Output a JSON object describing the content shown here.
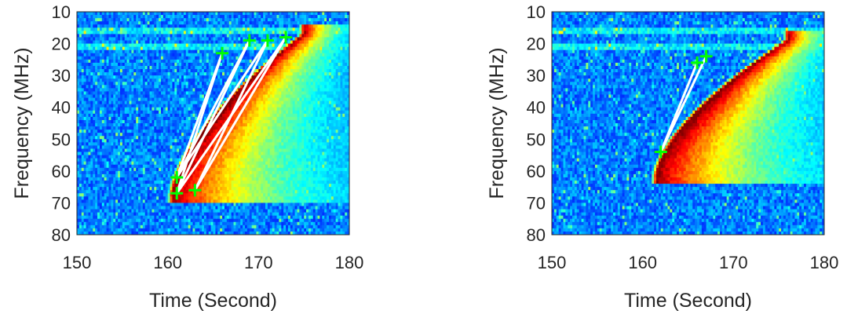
{
  "chart_data": [
    {
      "type": "heatmap",
      "overlay": "scatter-with-connecting-lines",
      "title": "",
      "xlabel": "Time (Second)",
      "ylabel": "Frequency (MHz)",
      "xlim": [
        150,
        180
      ],
      "ylim": [
        10,
        80
      ],
      "y_reversed": true,
      "xticks": [
        "150",
        "160",
        "170",
        "180"
      ],
      "yticks": [
        "10",
        "20",
        "30",
        "40",
        "50",
        "60",
        "70",
        "80"
      ],
      "colormap": "jet",
      "burst": {
        "start_time": 160.5,
        "start_freq": 68,
        "end_time": 175,
        "end_freq": 17
      },
      "markers": [
        {
          "x": 161,
          "y": 62
        },
        {
          "x": 161,
          "y": 67
        },
        {
          "x": 163,
          "y": 66
        },
        {
          "x": 166,
          "y": 23
        },
        {
          "x": 169,
          "y": 19
        },
        {
          "x": 171,
          "y": 19
        },
        {
          "x": 173,
          "y": 18
        }
      ],
      "lines": [
        {
          "from": [
            161,
            62
          ],
          "to": [
            166,
            23
          ]
        },
        {
          "from": [
            161,
            67
          ],
          "to": [
            166,
            23
          ]
        },
        {
          "from": [
            161,
            62
          ],
          "to": [
            169,
            19
          ]
        },
        {
          "from": [
            161,
            67
          ],
          "to": [
            169,
            19
          ]
        },
        {
          "from": [
            161,
            62
          ],
          "to": [
            171,
            19
          ]
        },
        {
          "from": [
            163,
            66
          ],
          "to": [
            171,
            19
          ]
        },
        {
          "from": [
            161,
            67
          ],
          "to": [
            173,
            18
          ]
        },
        {
          "from": [
            163,
            66
          ],
          "to": [
            173,
            18
          ]
        }
      ],
      "marker_color": "#00ff00",
      "line_color": "#ffffff"
    },
    {
      "type": "heatmap",
      "overlay": "scatter-with-connecting-lines",
      "title": "",
      "xlabel": "Time (Second)",
      "ylabel": "Frequency (MHz)",
      "xlim": [
        150,
        180
      ],
      "ylim": [
        10,
        80
      ],
      "y_reversed": true,
      "xticks": [
        "150",
        "160",
        "170",
        "180"
      ],
      "yticks": [
        "10",
        "20",
        "30",
        "40",
        "50",
        "60",
        "70",
        "80"
      ],
      "colormap": "jet",
      "burst": {
        "start_time": 161.5,
        "start_freq": 62,
        "end_time": 176,
        "end_freq": 19
      },
      "markers": [
        {
          "x": 162,
          "y": 54
        },
        {
          "x": 166,
          "y": 26
        },
        {
          "x": 167,
          "y": 24
        }
      ],
      "lines": [
        {
          "from": [
            162,
            54
          ],
          "to": [
            166,
            26
          ]
        },
        {
          "from": [
            162,
            54
          ],
          "to": [
            167,
            24
          ]
        }
      ],
      "marker_color": "#00ff00",
      "line_color": "#ffffff"
    }
  ]
}
